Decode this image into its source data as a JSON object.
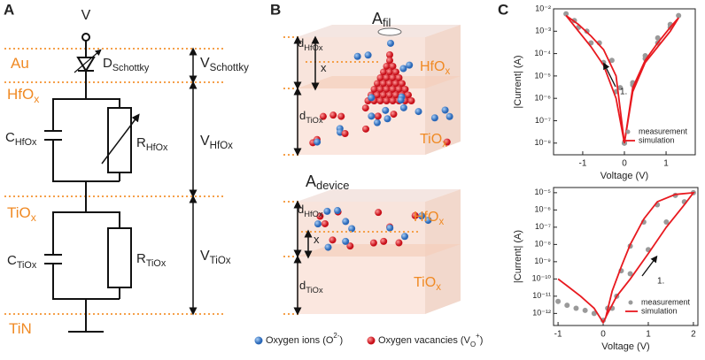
{
  "panel_a": {
    "label": "A",
    "voltage": "V",
    "layers": [
      [
        {
          "text": "Au"
        }
      ],
      [
        {
          "text": "HfO"
        },
        {
          "text": "x",
          "shift": "sub"
        }
      ],
      [
        {
          "text": "TiO"
        },
        {
          "text": "x",
          "shift": "sub"
        }
      ],
      [
        {
          "text": "TiN"
        }
      ]
    ],
    "components": [
      [
        {
          "text": "D"
        },
        {
          "text": "Schottky",
          "shift": "sub"
        }
      ],
      [
        {
          "text": "C"
        },
        {
          "text": "HfOx",
          "shift": "sub"
        }
      ],
      [
        {
          "text": "R"
        },
        {
          "text": "HfOx",
          "shift": "sub"
        }
      ],
      [
        {
          "text": "C"
        },
        {
          "text": "TiOx",
          "shift": "sub"
        }
      ],
      [
        {
          "text": "R"
        },
        {
          "text": "TiOx",
          "shift": "sub"
        }
      ]
    ],
    "voltages": [
      [
        {
          "text": "V"
        },
        {
          "text": "Schottky",
          "shift": "sub"
        }
      ],
      [
        {
          "text": "V"
        },
        {
          "text": "HfOx",
          "shift": "sub"
        }
      ],
      [
        {
          "text": "V"
        },
        {
          "text": "TiOx",
          "shift": "sub"
        }
      ]
    ]
  },
  "panel_b": {
    "label": "B",
    "top": {
      "area": [
        {
          "text": "A"
        },
        {
          "text": "fil",
          "shift": "sub"
        }
      ],
      "d_hfox": [
        {
          "text": "d"
        },
        {
          "text": "HfOx",
          "shift": "sub"
        }
      ],
      "x": [
        {
          "text": "x"
        }
      ],
      "d_tiox": [
        {
          "text": "d"
        },
        {
          "text": "TiOx",
          "shift": "sub"
        }
      ],
      "hfox": [
        {
          "text": "HfO"
        },
        {
          "text": "x",
          "shift": "sub"
        }
      ],
      "tiox": [
        {
          "text": "TiO"
        },
        {
          "text": "x",
          "shift": "sub"
        }
      ]
    },
    "bottom": {
      "area": [
        {
          "text": "A"
        },
        {
          "text": "device",
          "shift": "sub"
        }
      ],
      "d_hfox": [
        {
          "text": "d"
        },
        {
          "text": "HfOx",
          "shift": "sub"
        }
      ],
      "x": [
        {
          "text": "x"
        }
      ],
      "d_tiox": [
        {
          "text": "d"
        },
        {
          "text": "TiOx",
          "shift": "sub"
        }
      ],
      "hfox": [
        {
          "text": "HfO"
        },
        {
          "text": "x",
          "shift": "sub"
        }
      ],
      "tiox": [
        {
          "text": "TiO"
        },
        {
          "text": "x",
          "shift": "sub"
        }
      ]
    },
    "legend": [
      [
        {
          "text": "Oxygen ions (O"
        },
        {
          "text": "2-",
          "shift": "sup"
        },
        {
          "text": ")"
        }
      ],
      [
        {
          "text": "Oxygen vacancies (V"
        },
        {
          "text": "O",
          "shift": "sub"
        },
        {
          "text": "+",
          "shift": "sup"
        },
        {
          "text": ")"
        }
      ]
    ]
  },
  "panel_c": {
    "label": "C"
  },
  "chart_data": [
    {
      "type": "line",
      "x_label": "Voltage (V)",
      "y_label": "|Current| (A)",
      "log_y": true,
      "xlim": [
        -1.7,
        1.7
      ],
      "xticks": [
        -1,
        0,
        1
      ],
      "ylim": [
        3e-09,
        0.01
      ],
      "yticks": [
        {
          "value": 1e-08,
          "label": "10⁻⁸"
        },
        {
          "value": 1e-07,
          "label": "10⁻⁷"
        },
        {
          "value": 1e-06,
          "label": "10⁻⁶"
        },
        {
          "value": 1e-05,
          "label": "10⁻⁵"
        },
        {
          "value": 0.0001,
          "label": "10⁻⁴"
        },
        {
          "value": 0.001,
          "label": "10⁻³"
        },
        {
          "value": 0.01,
          "label": "10⁻²"
        }
      ],
      "annotation": "1.",
      "series": [
        {
          "name": "measurement",
          "color": "#9a9a9a",
          "marker": "circle",
          "x": [
            0,
            -0.2,
            -0.5,
            -0.8,
            -1.1,
            -1.4,
            -1.2,
            -0.9,
            -0.6,
            -0.3,
            -0.1,
            0,
            0.2,
            0.5,
            0.8,
            1.1,
            1.3,
            1.1,
            0.8,
            0.5,
            0.2,
            0
          ],
          "values": [
            1e-08,
            2e-06,
            4e-05,
            0.0003,
            0.0015,
            0.006,
            0.003,
            0.001,
            0.0003,
            5e-05,
            3e-06,
            1e-08,
            5e-06,
            8e-05,
            0.0005,
            0.002,
            0.005,
            0.0015,
            0.0003,
            6e-05,
            4e-06,
            1e-08
          ]
        },
        {
          "name": "simulation",
          "color": "#e8191f",
          "x": [
            0,
            -0.2,
            -0.5,
            -0.8,
            -1.1,
            -1.4,
            -1.1,
            -0.8,
            -0.5,
            -0.2,
            0,
            0.2,
            0.5,
            0.8,
            1.1,
            1.3,
            1.1,
            0.8,
            0.5,
            0.2,
            0
          ],
          "values": [
            1e-08,
            1e-06,
            3e-05,
            0.0002,
            0.001,
            0.005,
            0.002,
            0.0006,
            0.00015,
            1e-05,
            1e-08,
            3e-06,
            5e-05,
            0.0003,
            0.0015,
            0.004,
            0.001,
            0.0002,
            4e-05,
            2e-06,
            1e-08
          ]
        }
      ]
    },
    {
      "type": "line",
      "x_label": "Voltage (V)",
      "y_label": "|Current| (A)",
      "log_y": true,
      "xlim": [
        -1.1,
        2.1
      ],
      "xticks": [
        -1,
        0,
        1,
        2
      ],
      "ylim": [
        2e-13,
        2e-05
      ],
      "yticks": [
        {
          "value": 1e-12,
          "label": "10⁻¹²"
        },
        {
          "value": 1e-11,
          "label": "10⁻¹¹"
        },
        {
          "value": 1e-10,
          "label": "10⁻¹⁰"
        },
        {
          "value": 1e-09,
          "label": "10⁻⁹"
        },
        {
          "value": 1e-08,
          "label": "10⁻⁸"
        },
        {
          "value": 1e-07,
          "label": "10⁻⁷"
        },
        {
          "value": 1e-06,
          "label": "10⁻⁶"
        },
        {
          "value": 1e-05,
          "label": "10⁻⁵"
        }
      ],
      "annotation": "1.",
      "series": [
        {
          "name": "measurement",
          "color": "#9a9a9a",
          "marker": "circle",
          "x": [
            -1,
            -0.8,
            -0.6,
            -0.4,
            -0.2,
            0,
            0.1,
            0.3,
            0.6,
            1.0,
            1.4,
            1.8,
            2.0,
            1.6,
            1.2,
            0.9,
            0.6,
            0.4,
            0.2
          ],
          "values": [
            5e-12,
            3e-12,
            2e-12,
            1.5e-12,
            1e-12,
            4e-13,
            2e-12,
            1e-11,
            2e-10,
            5e-09,
            2e-07,
            3e-06,
            1e-05,
            7e-06,
            2e-06,
            2e-07,
            8e-09,
            3e-10,
            2e-12
          ]
        },
        {
          "name": "simulation",
          "color": "#e8191f",
          "x": [
            -1,
            -0.8,
            -0.5,
            -0.2,
            0,
            0.1,
            0.3,
            0.6,
            1.0,
            1.4,
            1.8,
            2.0,
            1.6,
            1.2,
            0.9,
            0.6,
            0.4,
            0.2,
            0.05
          ],
          "values": [
            1e-10,
            4e-11,
            1e-11,
            2e-12,
            3e-13,
            1e-12,
            1e-11,
            1e-10,
            3e-09,
            1e-07,
            2e-06,
            1e-05,
            8e-06,
            3e-06,
            3e-07,
            1e-08,
            5e-10,
            2e-11,
            5e-13
          ]
        }
      ]
    }
  ]
}
